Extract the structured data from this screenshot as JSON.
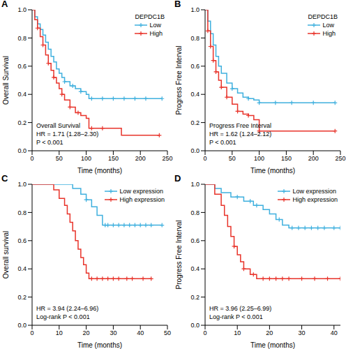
{
  "chart_data": [
    {
      "type": "line",
      "title": "A",
      "xlabel": "Time (months)",
      "ylabel": "Overall Survival",
      "xlim": [
        0,
        250
      ],
      "xticks": [
        0,
        50,
        100,
        150,
        200,
        250
      ],
      "ylim": [
        0,
        1
      ],
      "yticks": [
        {
          "value": 0,
          "label": "0.0"
        },
        {
          "value": 0.2,
          "label": "0.2"
        },
        {
          "value": 0.4,
          "label": "0.4"
        },
        {
          "value": 0.6,
          "label": "0.6"
        },
        {
          "value": 0.8,
          "label": "0.8"
        },
        {
          "value": 1,
          "label": "1.0"
        }
      ],
      "grid": false,
      "legend": "upper right",
      "legend_title": "DEPDC1B",
      "annotations": [
        "Overall Survival",
        "HR = 1.71 (1.28–2.30)",
        "P < 0.001"
      ],
      "series": [
        {
          "name": "Low",
          "color": "#3fb0de",
          "line_style": "step",
          "marker": "plus",
          "x": [
            0,
            5,
            10,
            15,
            20,
            25,
            30,
            35,
            40,
            45,
            50,
            55,
            60,
            70,
            80,
            90,
            100,
            105,
            240
          ],
          "values": [
            1,
            0.95,
            0.9,
            0.86,
            0.82,
            0.77,
            0.72,
            0.67,
            0.63,
            0.58,
            0.55,
            0.52,
            0.49,
            0.46,
            0.44,
            0.42,
            0.4,
            0.37,
            0.37
          ],
          "censored": [
            60,
            75,
            90,
            110,
            130,
            150,
            170,
            190,
            210,
            240
          ]
        },
        {
          "name": "High",
          "color": "#e8332a",
          "line_style": "step",
          "marker": "plus",
          "x": [
            0,
            5,
            10,
            15,
            20,
            25,
            30,
            35,
            40,
            45,
            50,
            55,
            60,
            70,
            80,
            90,
            100,
            105,
            165,
            235
          ],
          "values": [
            1,
            0.93,
            0.87,
            0.81,
            0.75,
            0.68,
            0.62,
            0.57,
            0.52,
            0.48,
            0.44,
            0.4,
            0.36,
            0.31,
            0.27,
            0.25,
            0.23,
            0.16,
            0.11,
            0.11
          ],
          "censored": [
            10,
            20,
            30,
            40,
            55,
            70,
            85,
            110,
            130,
            235
          ]
        }
      ]
    },
    {
      "type": "line",
      "title": "B",
      "xlabel": "Time (months)",
      "ylabel": "Progress Free Interval",
      "xlim": [
        0,
        250
      ],
      "xticks": [
        0,
        50,
        100,
        150,
        200,
        250
      ],
      "ylim": [
        0,
        1
      ],
      "yticks": [
        {
          "value": 0,
          "label": "0.0"
        },
        {
          "value": 0.2,
          "label": "0.2"
        },
        {
          "value": 0.4,
          "label": "0.4"
        },
        {
          "value": 0.6,
          "label": "0.6"
        },
        {
          "value": 0.8,
          "label": "0.8"
        },
        {
          "value": 1,
          "label": "1.0"
        }
      ],
      "grid": false,
      "legend": "upper right",
      "legend_title": "DEPDC1B",
      "annotations": [
        "Progress Free Interval",
        "HR = 1.62 (1.24–2.12)",
        "P < 0.001"
      ],
      "series": [
        {
          "name": "Low",
          "color": "#3fb0de",
          "line_style": "step",
          "marker": "plus",
          "x": [
            0,
            5,
            10,
            15,
            20,
            25,
            30,
            40,
            50,
            60,
            70,
            80,
            90,
            100,
            240
          ],
          "values": [
            1,
            0.92,
            0.83,
            0.75,
            0.67,
            0.6,
            0.55,
            0.48,
            0.44,
            0.41,
            0.38,
            0.37,
            0.36,
            0.34,
            0.34
          ],
          "censored": [
            50,
            80,
            100,
            130,
            160,
            200,
            240
          ]
        },
        {
          "name": "High",
          "color": "#e8332a",
          "line_style": "step",
          "marker": "plus",
          "x": [
            0,
            5,
            10,
            15,
            20,
            25,
            30,
            40,
            50,
            60,
            70,
            80,
            90,
            100,
            240
          ],
          "values": [
            1,
            0.85,
            0.74,
            0.64,
            0.56,
            0.5,
            0.45,
            0.38,
            0.33,
            0.28,
            0.26,
            0.25,
            0.22,
            0.14,
            0.14
          ],
          "censored": [
            5,
            10,
            15,
            20,
            30,
            40,
            60,
            80,
            100,
            240
          ]
        }
      ]
    },
    {
      "type": "line",
      "title": "C",
      "xlabel": "Time (months)",
      "ylabel": "Overall survival",
      "xlim": [
        0,
        50
      ],
      "xticks": [
        0,
        10,
        20,
        30,
        40,
        50
      ],
      "ylim": [
        0,
        1
      ],
      "yticks": [
        {
          "value": 0,
          "label": "0.0"
        },
        {
          "value": 0.2,
          "label": "0.2"
        },
        {
          "value": 0.4,
          "label": "0.4"
        },
        {
          "value": 0.6,
          "label": "0.6"
        },
        {
          "value": 0.8,
          "label": "0.8"
        },
        {
          "value": 1,
          "label": "1.0"
        }
      ],
      "grid": false,
      "legend": "upper right",
      "annotations": [
        "HR = 3.94 (2.24–6.96)",
        "Log-rank P < 0.001"
      ],
      "series": [
        {
          "name": "Low expression",
          "color": "#3fb0de",
          "line_style": "step",
          "marker": "plus",
          "x": [
            0,
            15,
            18,
            20,
            22,
            24,
            26,
            48
          ],
          "values": [
            1,
            0.97,
            0.93,
            0.89,
            0.84,
            0.78,
            0.71,
            0.71
          ],
          "censored": [
            20,
            27,
            28,
            30,
            32,
            34,
            36,
            38,
            40,
            42,
            44,
            48
          ]
        },
        {
          "name": "High expression",
          "color": "#e8332a",
          "line_style": "step",
          "marker": "plus",
          "x": [
            0,
            8,
            10,
            12,
            13,
            14,
            15,
            16,
            17,
            18,
            19,
            20,
            21,
            44
          ],
          "values": [
            1,
            0.96,
            0.9,
            0.85,
            0.79,
            0.73,
            0.67,
            0.6,
            0.54,
            0.48,
            0.43,
            0.37,
            0.33,
            0.33
          ],
          "censored": [
            22,
            24,
            26,
            28,
            30,
            32,
            35,
            37,
            41,
            44
          ]
        }
      ]
    },
    {
      "type": "line",
      "title": "D",
      "xlabel": "Time (months)",
      "ylabel": "Progress Free Interval",
      "xlim": [
        0,
        42
      ],
      "xticks": [
        0,
        10,
        20,
        30,
        40
      ],
      "ylim": [
        0,
        1
      ],
      "yticks": [
        {
          "value": 0,
          "label": "0.0"
        },
        {
          "value": 0.2,
          "label": "0.2"
        },
        {
          "value": 0.4,
          "label": "0.4"
        },
        {
          "value": 0.6,
          "label": "0.6"
        },
        {
          "value": 0.8,
          "label": "0.8"
        },
        {
          "value": 1,
          "label": "1.0"
        }
      ],
      "grid": false,
      "legend": "upper right",
      "annotations": [
        "HR = 3.96 (2.25–6.99)",
        "Log-rank P < 0.001"
      ],
      "series": [
        {
          "name": "Low expression",
          "color": "#3fb0de",
          "line_style": "step",
          "marker": "plus",
          "x": [
            0,
            3,
            5,
            8,
            12,
            15,
            18,
            20,
            22,
            24,
            26,
            42
          ],
          "values": [
            1,
            0.97,
            0.94,
            0.91,
            0.88,
            0.85,
            0.82,
            0.79,
            0.75,
            0.71,
            0.69,
            0.69
          ],
          "censored": [
            10,
            14,
            16,
            23,
            27,
            29,
            31,
            33,
            35,
            37,
            40,
            42
          ]
        },
        {
          "name": "High expression",
          "color": "#e8332a",
          "line_style": "step",
          "marker": "plus",
          "x": [
            0,
            3,
            5,
            6,
            7,
            8,
            9,
            10,
            11,
            12,
            14,
            16,
            42
          ],
          "values": [
            1,
            0.93,
            0.85,
            0.78,
            0.7,
            0.63,
            0.56,
            0.5,
            0.45,
            0.4,
            0.36,
            0.33,
            0.33
          ],
          "censored": [
            9,
            12,
            15,
            18,
            20,
            22,
            24,
            26,
            30,
            34,
            38,
            42
          ]
        }
      ]
    }
  ]
}
